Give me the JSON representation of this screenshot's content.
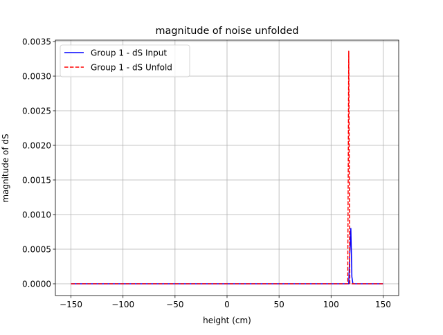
{
  "chart_data": {
    "type": "line",
    "title": "magnitude of noise unfolded",
    "xlabel": "height (cm)",
    "ylabel": "magnitude of dS",
    "xlim": [
      -165,
      165
    ],
    "ylim": [
      -0.00017,
      0.00352
    ],
    "xticks": [
      -150,
      -100,
      -50,
      0,
      50,
      100,
      150
    ],
    "xtick_labels": [
      "−150",
      "−100",
      "−50",
      "0",
      "50",
      "100",
      "150"
    ],
    "yticks": [
      0.0,
      0.0005,
      0.001,
      0.0015,
      0.002,
      0.0025,
      0.003,
      0.0035
    ],
    "ytick_labels": [
      "0.0000",
      "0.0005",
      "0.0010",
      "0.0015",
      "0.0020",
      "0.0025",
      "0.0030",
      "0.0035"
    ],
    "grid": true,
    "legend_position": "top-left",
    "series": [
      {
        "name": "Group 1 - dS Input",
        "color": "#0000ff",
        "dash": "solid",
        "x": [
          -150,
          117,
          118,
          119,
          120,
          121,
          150
        ],
        "y": [
          0,
          0,
          0.00045,
          0.0008,
          0.0001,
          0,
          0
        ]
      },
      {
        "name": "Group 1 - dS Unfold",
        "color": "#ff0000",
        "dash": "dashed",
        "x": [
          -150,
          116,
          117,
          118,
          150
        ],
        "y": [
          0,
          0,
          0.00336,
          0,
          0
        ]
      }
    ]
  }
}
